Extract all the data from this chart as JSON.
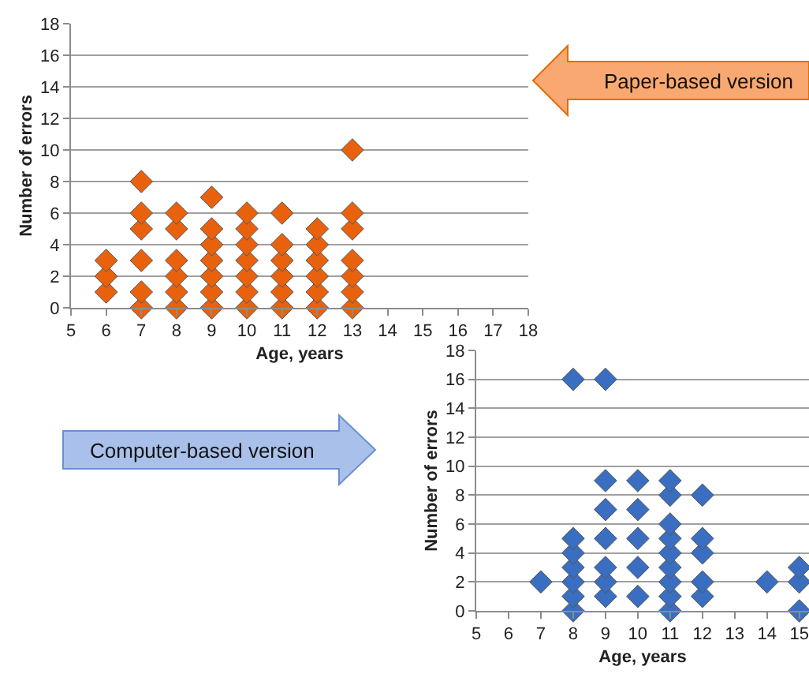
{
  "chart_data": [
    {
      "type": "scatter",
      "xlabel": "Age, years",
      "ylabel": "Number of errors",
      "marker": "diamond",
      "grid": "y",
      "xlim": [
        5,
        18
      ],
      "xticks": [
        5,
        6,
        7,
        8,
        9,
        10,
        11,
        12,
        13,
        14,
        15,
        16,
        17,
        18
      ],
      "ylim": [
        0,
        18
      ],
      "yticks": [
        0,
        2,
        4,
        6,
        8,
        10,
        12,
        14,
        16,
        18
      ],
      "annotations": [
        "Paper-based version"
      ],
      "series": [
        {
          "color": "#e8620e",
          "x": [
            6,
            6,
            6,
            7,
            7,
            7,
            7,
            7,
            7,
            8,
            8,
            8,
            8,
            8,
            8,
            9,
            9,
            9,
            9,
            9,
            9,
            9,
            10,
            10,
            10,
            10,
            10,
            10,
            10,
            11,
            11,
            11,
            11,
            11,
            11,
            12,
            12,
            12,
            12,
            12,
            12,
            13,
            13,
            13,
            13,
            13,
            13,
            13
          ],
          "values": [
            1,
            2,
            3,
            0,
            1,
            3,
            5,
            6,
            8,
            0,
            1,
            2,
            3,
            5,
            6,
            0,
            1,
            2,
            3,
            4,
            5,
            7,
            0,
            1,
            2,
            3,
            4,
            5,
            6,
            0,
            1,
            2,
            3,
            4,
            6,
            0,
            1,
            2,
            3,
            4,
            5,
            0,
            1,
            2,
            3,
            5,
            6,
            10
          ]
        }
      ]
    },
    {
      "type": "scatter",
      "xlabel": "Age, years",
      "ylabel": "Number of errors",
      "marker": "diamond",
      "grid": "y",
      "xlim": [
        5,
        15.3
      ],
      "xticks": [
        5,
        6,
        7,
        8,
        9,
        10,
        11,
        12,
        13,
        14,
        15
      ],
      "ylim": [
        0,
        18
      ],
      "yticks": [
        0,
        2,
        4,
        6,
        8,
        10,
        12,
        14,
        16,
        18
      ],
      "annotations": [
        "Computer-based version"
      ],
      "series": [
        {
          "color": "#3a6ec0",
          "x": [
            7,
            8,
            8,
            8,
            8,
            8,
            8,
            8,
            9,
            9,
            9,
            9,
            9,
            9,
            9,
            10,
            10,
            10,
            10,
            10,
            11,
            11,
            11,
            11,
            11,
            11,
            11,
            11,
            11,
            12,
            12,
            12,
            12,
            12,
            14,
            15,
            15,
            15
          ],
          "values": [
            2,
            0,
            1,
            2,
            3,
            4,
            5,
            16,
            1,
            2,
            3,
            5,
            7,
            9,
            16,
            1,
            3,
            5,
            7,
            9,
            0,
            1,
            2,
            3,
            4,
            5,
            6,
            8,
            9,
            1,
            2,
            4,
            5,
            8,
            2,
            0,
            2,
            3
          ]
        }
      ]
    }
  ]
}
